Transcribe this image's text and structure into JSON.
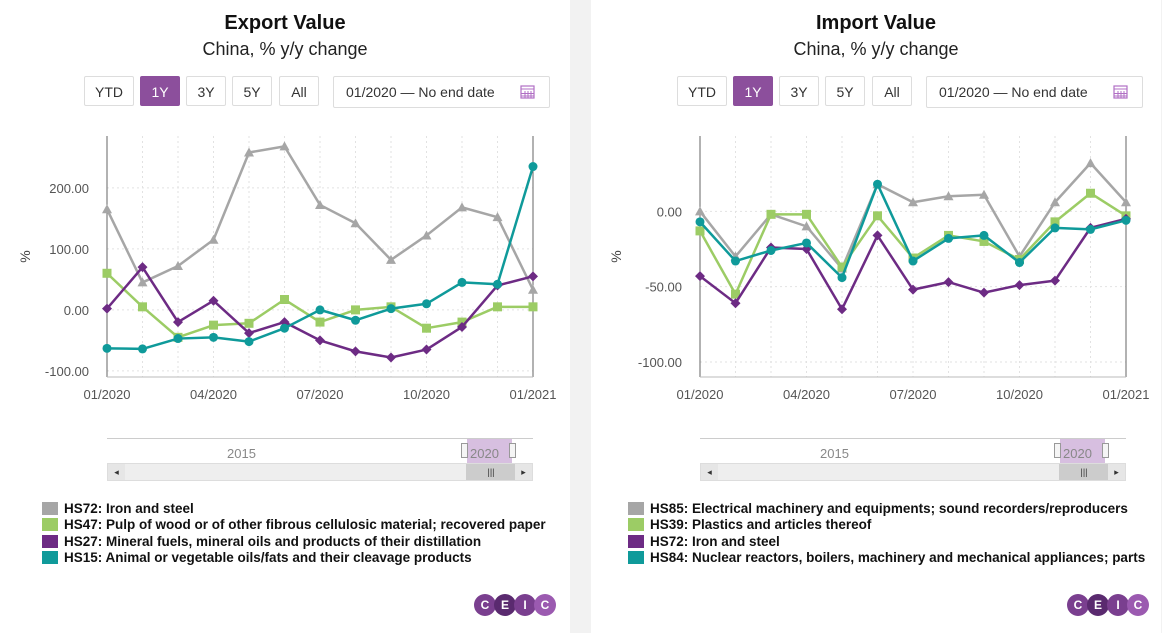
{
  "range_buttons": [
    "YTD",
    "1Y",
    "3Y",
    "5Y",
    "All"
  ],
  "active_button": "1Y",
  "date_range": {
    "start": "01/2020",
    "sep": "—",
    "end": "No end date"
  },
  "navigator": {
    "label_2015": "2015",
    "label_2020": "2020"
  },
  "logo_letters": [
    "C",
    "E",
    "I",
    "C"
  ],
  "colors": {
    "gray": "#a6a6a6",
    "green": "#9ccc65",
    "purple": "#6d2b84",
    "teal": "#0f9a9a",
    "accent": "#8c4f9c"
  },
  "chart_data": [
    {
      "type": "line",
      "title": "Export Value",
      "subtitle": "China, % y/y change",
      "ylabel": "%",
      "ylim": [
        -110,
        285
      ],
      "yticks": [
        "200.00",
        "100.00",
        "0.00",
        "-100.00"
      ],
      "xticks": [
        "01/2020",
        "04/2020",
        "07/2020",
        "10/2020",
        "01/2021"
      ],
      "x": [
        "01/2020",
        "02/2020",
        "03/2020",
        "04/2020",
        "05/2020",
        "06/2020",
        "07/2020",
        "08/2020",
        "09/2020",
        "10/2020",
        "11/2020",
        "12/2020",
        "01/2021"
      ],
      "grid": true,
      "series": [
        {
          "name": "HS72: Iron and steel",
          "color": "#a6a6a6",
          "marker": "triangle",
          "values": [
            165,
            45,
            72,
            115,
            258,
            268,
            172,
            142,
            82,
            122,
            168,
            152,
            33
          ]
        },
        {
          "name": "HS47: Pulp of wood or of other fibrous cellulosic material; recovered paper",
          "color": "#9ccc65",
          "marker": "square",
          "values": [
            60,
            5,
            -45,
            -25,
            -22,
            17,
            -20,
            0,
            5,
            -30,
            -20,
            5,
            5
          ]
        },
        {
          "name": "HS27: Mineral fuels, mineral oils and products of their distillation",
          "color": "#6d2b84",
          "marker": "diamond",
          "values": [
            2,
            70,
            -20,
            15,
            -38,
            -20,
            -50,
            -68,
            -78,
            -65,
            -28,
            40,
            55
          ]
        },
        {
          "name": "HS15: Animal or vegetable oils/fats and their cleavage products",
          "color": "#0f9a9a",
          "marker": "circle",
          "values": [
            -63,
            -64,
            -47,
            -45,
            -52,
            -30,
            0,
            -17,
            2,
            10,
            45,
            42,
            235
          ]
        }
      ]
    },
    {
      "type": "line",
      "title": "Import Value",
      "subtitle": "China, % y/y change",
      "ylabel": "%",
      "ylim": [
        -110,
        50
      ],
      "yticks": [
        "0.00",
        "-50.00",
        "-100.00"
      ],
      "xticks": [
        "01/2020",
        "04/2020",
        "07/2020",
        "10/2020",
        "01/2021"
      ],
      "x": [
        "01/2020",
        "02/2020",
        "03/2020",
        "04/2020",
        "05/2020",
        "06/2020",
        "07/2020",
        "08/2020",
        "09/2020",
        "10/2020",
        "11/2020",
        "12/2020",
        "01/2021"
      ],
      "grid": true,
      "series": [
        {
          "name": "HS85: Electrical machinery and equipments; sound recorders/reproducers",
          "color": "#a6a6a6",
          "marker": "triangle",
          "values": [
            0,
            -30,
            -2,
            -10,
            -38,
            18,
            6,
            10,
            11,
            -30,
            6,
            32,
            6
          ]
        },
        {
          "name": "HS39: Plastics and articles thereof",
          "color": "#9ccc65",
          "marker": "square",
          "values": [
            -13,
            -55,
            -2,
            -2,
            -37,
            -3,
            -31,
            -16,
            -20,
            -32,
            -7,
            12,
            -3
          ]
        },
        {
          "name": "HS72: Iron and steel",
          "color": "#6d2b84",
          "marker": "diamond",
          "values": [
            -43,
            -61,
            -24,
            -25,
            -65,
            -16,
            -52,
            -47,
            -54,
            -49,
            -46,
            -11,
            -5
          ]
        },
        {
          "name": "HS84: Nuclear reactors, boilers, machinery and mechanical appliances; parts",
          "color": "#0f9a9a",
          "marker": "circle",
          "values": [
            -7,
            -33,
            -26,
            -21,
            -44,
            18,
            -33,
            -18,
            -16,
            -34,
            -11,
            -12,
            -6
          ]
        }
      ]
    }
  ]
}
